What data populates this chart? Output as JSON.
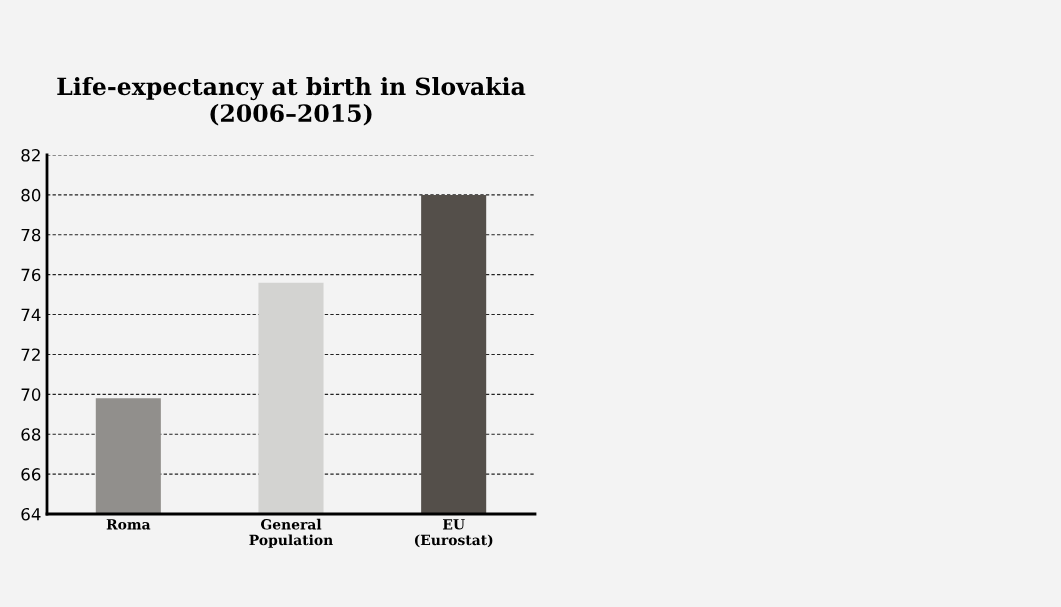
{
  "chart_data": {
    "type": "bar",
    "title": "Life-expectancy at birth in Slovakia\n(2006–2015)",
    "categories": [
      "Roma",
      "General\nPopulation",
      "EU\n(Eurostat)"
    ],
    "values": [
      69.8,
      75.6,
      80.0
    ],
    "colors": [
      "#918f8c",
      "#d3d3d1",
      "#544f4a"
    ],
    "ylim": [
      64,
      82
    ],
    "yticks": [
      64,
      66,
      68,
      70,
      72,
      74,
      76,
      78,
      80,
      82
    ],
    "grid": "y"
  }
}
